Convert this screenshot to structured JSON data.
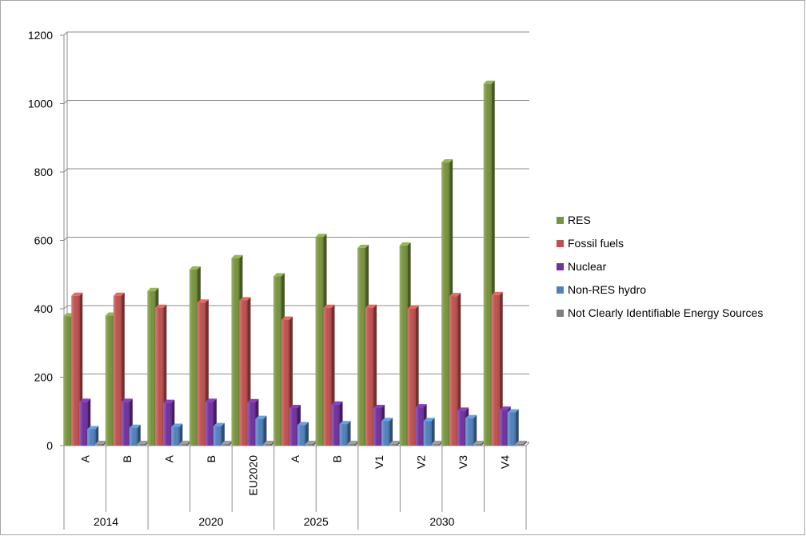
{
  "chart_data": {
    "type": "bar",
    "ylim": [
      0,
      1200
    ],
    "yticks": [
      0,
      200,
      400,
      600,
      800,
      1000,
      1200
    ],
    "grid": true,
    "legend_position": "right",
    "groups": [
      {
        "label": "2014",
        "categories": [
          "A",
          "B"
        ]
      },
      {
        "label": "2020",
        "categories": [
          "A",
          "B",
          "EU2020"
        ]
      },
      {
        "label": "2025",
        "categories": [
          "A",
          "B"
        ]
      },
      {
        "label": "2030",
        "categories": [
          "V1",
          "V2",
          "V3",
          "V4"
        ]
      }
    ],
    "categories": [
      "A",
      "B",
      "A",
      "B",
      "EU2020",
      "A",
      "B",
      "V1",
      "V2",
      "V3",
      "V4"
    ],
    "series": [
      {
        "name": "RES",
        "color": "#77933c",
        "values": [
          378,
          380,
          452,
          515,
          548,
          495,
          610,
          578,
          585,
          828,
          1058
        ]
      },
      {
        "name": "Fossil fuels",
        "color": "#c0504d",
        "values": [
          438,
          438,
          403,
          418,
          425,
          368,
          403,
          403,
          400,
          437,
          440
        ]
      },
      {
        "name": "Nuclear",
        "color": "#7030a0",
        "values": [
          128,
          128,
          125,
          128,
          127,
          110,
          120,
          110,
          112,
          102,
          105
        ]
      },
      {
        "name": "Non-RES hydro",
        "color": "#4f81bd",
        "values": [
          48,
          52,
          55,
          57,
          78,
          60,
          63,
          72,
          72,
          80,
          97
        ]
      },
      {
        "name": "Not Clearly Identifiable Energy Sources",
        "color": "#7f7f7f",
        "values": [
          5,
          5,
          5,
          5,
          5,
          5,
          5,
          5,
          5,
          5,
          5
        ]
      }
    ]
  }
}
